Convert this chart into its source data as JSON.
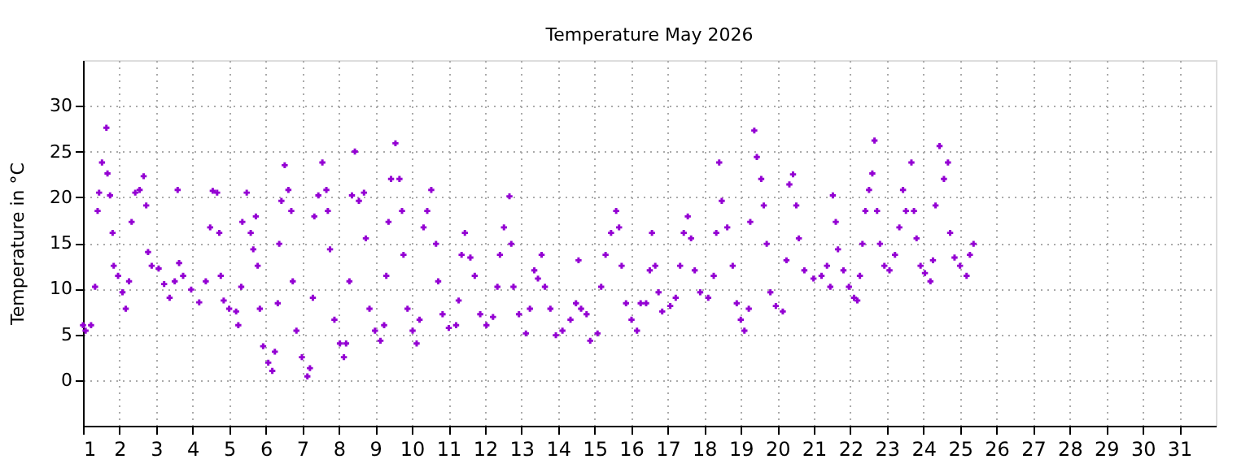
{
  "chart_data": {
    "type": "scatter",
    "title": "Temperature May 2026",
    "ylabel": "Temperature in °C",
    "xlim": [
      1,
      32
    ],
    "xticks": [
      1,
      2,
      3,
      4,
      5,
      6,
      7,
      8,
      9,
      10,
      11,
      12,
      13,
      14,
      15,
      16,
      17,
      18,
      19,
      20,
      21,
      22,
      23,
      24,
      25,
      26,
      27,
      28,
      29,
      30,
      31
    ],
    "ylim": [
      -5,
      35
    ],
    "yticks": [
      0,
      5,
      10,
      15,
      20,
      25,
      30
    ],
    "grid": true,
    "legend": false,
    "marker": "cross",
    "series": [
      {
        "color": "#9400d3",
        "x": [
          1.0,
          1.07,
          1.22,
          1.33,
          1.4,
          1.44,
          1.52,
          1.64,
          1.67,
          1.74,
          1.81,
          1.84,
          1.96,
          2.08,
          2.17,
          2.26,
          2.33,
          2.43,
          2.55,
          2.66,
          2.73,
          2.78,
          2.88,
          3.07,
          3.22,
          3.37,
          3.51,
          3.59,
          3.63,
          3.74,
          3.96,
          4.18,
          4.36,
          4.48,
          4.55,
          4.67,
          4.73,
          4.77,
          4.85,
          5.0,
          5.19,
          5.25,
          5.33,
          5.36,
          5.48,
          5.59,
          5.66,
          5.73,
          5.78,
          5.84,
          5.93,
          6.07,
          6.18,
          6.25,
          6.33,
          6.37,
          6.43,
          6.52,
          6.62,
          6.7,
          6.74,
          6.84,
          6.99,
          7.14,
          7.21,
          7.29,
          7.33,
          7.44,
          7.55,
          7.66,
          7.7,
          7.76,
          7.88,
          8.03,
          8.14,
          8.2,
          8.29,
          8.36,
          8.44,
          8.55,
          8.69,
          8.74,
          8.84,
          8.99,
          9.14,
          9.24,
          9.3,
          9.36,
          9.43,
          9.55,
          9.66,
          9.73,
          9.77,
          9.88,
          10.02,
          10.13,
          10.21,
          10.32,
          10.42,
          10.53,
          10.66,
          10.72,
          10.84,
          11.01,
          11.21,
          11.28,
          11.36,
          11.45,
          11.6,
          11.72,
          11.87,
          12.04,
          12.22,
          12.34,
          12.41,
          12.52,
          12.67,
          12.72,
          12.78,
          12.93,
          13.12,
          13.23,
          13.35,
          13.45,
          13.55,
          13.64,
          13.79,
          13.94,
          14.12,
          14.34,
          14.49,
          14.56,
          14.63,
          14.78,
          14.88,
          15.08,
          15.18,
          15.3,
          15.45,
          15.59,
          15.67,
          15.74,
          15.86,
          16.01,
          16.16,
          16.26,
          16.41,
          16.51,
          16.57,
          16.66,
          16.75,
          16.85,
          17.07,
          17.22,
          17.34,
          17.44,
          17.55,
          17.64,
          17.74,
          17.89,
          18.11,
          18.26,
          18.33,
          18.41,
          18.48,
          18.63,
          18.78,
          18.89,
          19.0,
          19.1,
          19.22,
          19.26,
          19.37,
          19.44,
          19.56,
          19.63,
          19.71,
          19.81,
          19.96,
          20.15,
          20.25,
          20.33,
          20.43,
          20.52,
          20.59,
          20.74,
          20.99,
          21.21,
          21.36,
          21.45,
          21.52,
          21.6,
          21.66,
          21.81,
          21.96,
          22.1,
          22.19,
          22.26,
          22.33,
          22.41,
          22.51,
          22.6,
          22.66,
          22.73,
          22.81,
          22.93,
          23.07,
          23.22,
          23.34,
          23.44,
          23.52,
          23.67,
          23.74,
          23.81,
          23.92,
          24.04,
          24.19,
          24.26,
          24.33,
          24.44,
          24.56,
          24.67,
          24.73,
          24.85,
          25.0,
          25.18,
          25.27,
          25.37
        ],
        "values": [
          6.0,
          5.4,
          6.0,
          10.2,
          18.5,
          20.5,
          23.8,
          27.6,
          22.6,
          20.2,
          16.1,
          12.5,
          11.4,
          9.6,
          7.8,
          10.8,
          17.3,
          20.5,
          20.8,
          22.3,
          19.1,
          14.0,
          12.5,
          12.2,
          10.5,
          9.0,
          10.8,
          20.8,
          12.8,
          11.4,
          9.9,
          8.5,
          10.8,
          16.7,
          20.7,
          20.5,
          16.1,
          11.4,
          8.7,
          7.8,
          7.5,
          6.0,
          10.2,
          17.3,
          20.5,
          16.1,
          14.3,
          17.9,
          12.5,
          7.8,
          3.7,
          1.9,
          1.0,
          3.1,
          8.4,
          14.9,
          19.6,
          23.5,
          20.8,
          18.5,
          10.8,
          5.4,
          2.5,
          0.4,
          1.3,
          9.0,
          17.9,
          20.2,
          23.8,
          20.8,
          18.5,
          14.3,
          6.6,
          4.0,
          2.5,
          4.0,
          10.8,
          20.2,
          25.0,
          19.6,
          20.5,
          15.5,
          7.8,
          5.4,
          4.3,
          6.0,
          11.4,
          17.3,
          22.0,
          25.9,
          22.0,
          18.5,
          13.7,
          7.8,
          5.4,
          4.0,
          6.6,
          16.7,
          18.5,
          20.8,
          14.9,
          10.8,
          7.2,
          5.7,
          6.0,
          8.7,
          13.7,
          16.1,
          13.4,
          11.4,
          7.2,
          6.0,
          6.9,
          10.2,
          13.7,
          16.7,
          20.1,
          14.9,
          10.2,
          7.2,
          5.1,
          7.8,
          12.0,
          11.1,
          13.7,
          10.2,
          7.8,
          4.9,
          5.4,
          6.6,
          8.4,
          13.1,
          7.8,
          7.2,
          4.3,
          5.1,
          10.2,
          13.7,
          16.1,
          18.5,
          16.7,
          12.5,
          8.4,
          6.6,
          5.4,
          8.4,
          8.4,
          12.0,
          16.1,
          12.5,
          9.6,
          7.5,
          8.1,
          9.0,
          12.5,
          16.1,
          17.9,
          15.5,
          12.0,
          9.6,
          9.0,
          11.4,
          16.1,
          23.8,
          19.6,
          16.7,
          12.5,
          8.4,
          6.6,
          5.4,
          7.8,
          17.3,
          27.3,
          24.4,
          22.0,
          19.1,
          14.9,
          9.6,
          8.1,
          7.5,
          13.1,
          21.4,
          22.5,
          19.1,
          15.5,
          12.0,
          11.1,
          11.4,
          12.5,
          10.2,
          20.2,
          17.3,
          14.3,
          12.0,
          10.2,
          9.0,
          8.7,
          11.4,
          14.9,
          18.5,
          20.8,
          22.6,
          26.2,
          18.5,
          14.9,
          12.5,
          12.0,
          13.7,
          16.7,
          20.8,
          18.5,
          23.8,
          18.5,
          15.5,
          12.5,
          11.7,
          10.8,
          13.1,
          19.1,
          25.6,
          22.0,
          23.8,
          16.1,
          13.4,
          12.5,
          11.4,
          13.7,
          14.9
        ]
      }
    ]
  }
}
